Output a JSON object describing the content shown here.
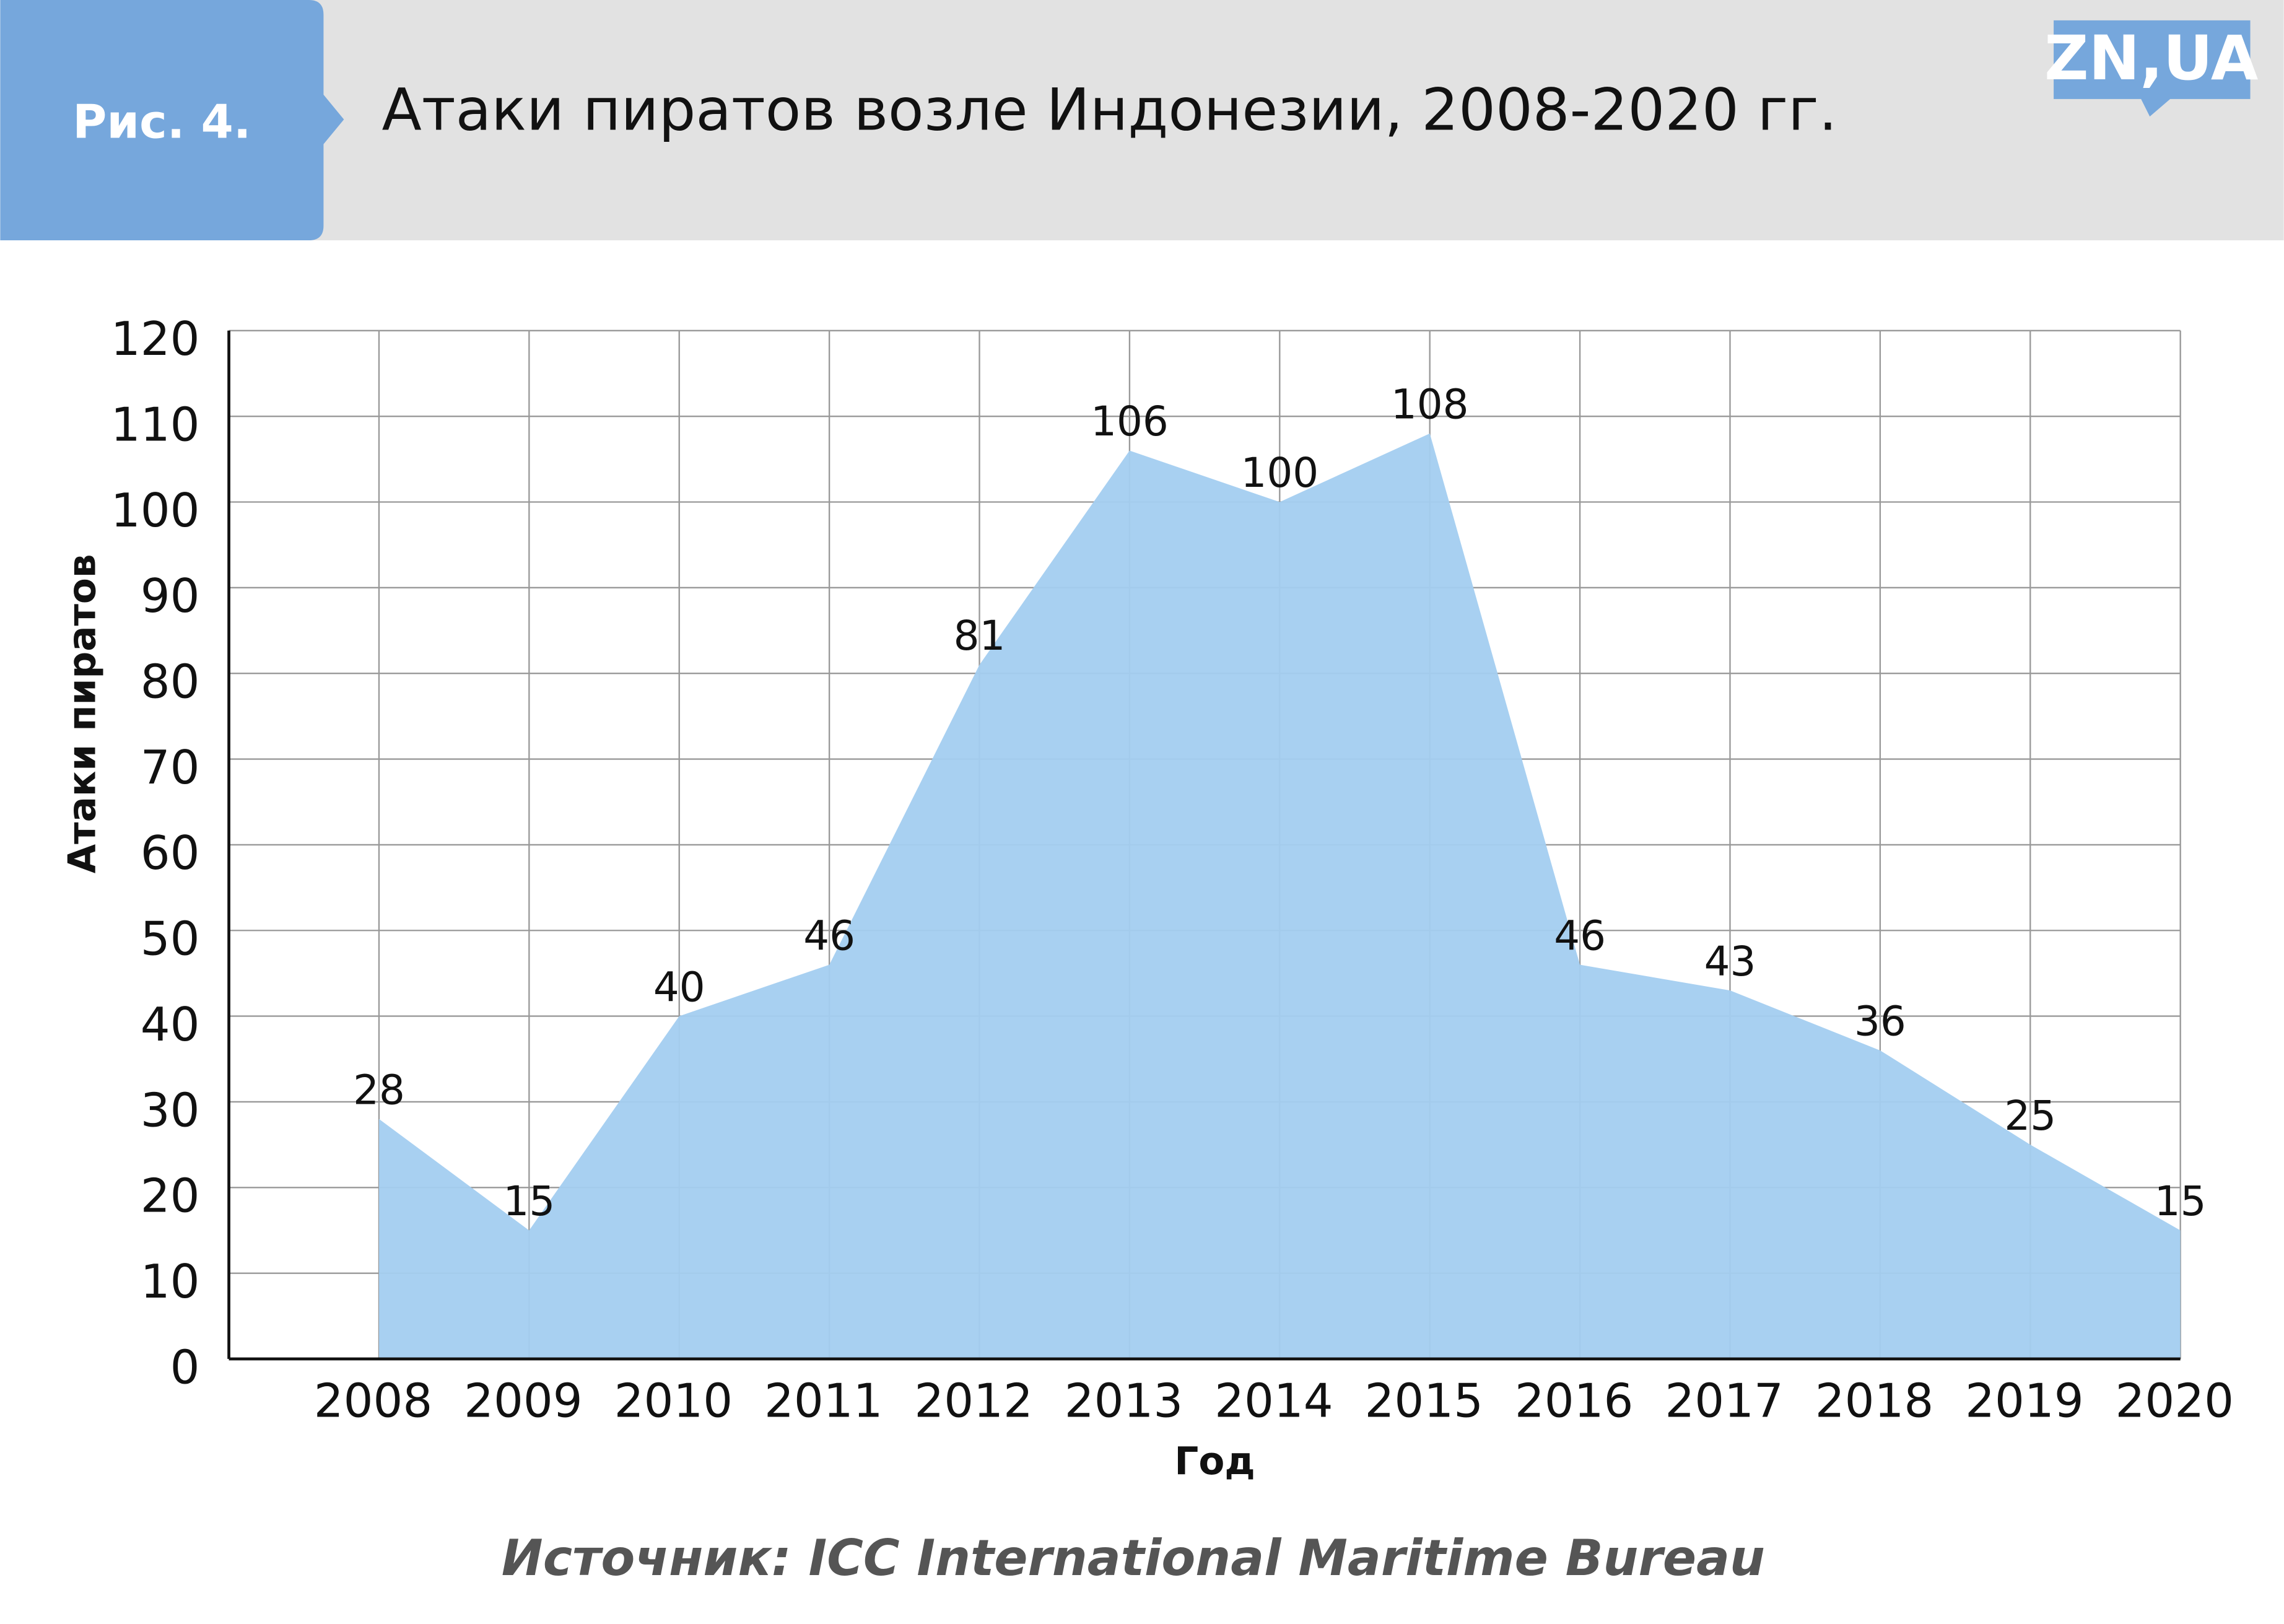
{
  "header": {
    "figure_label": "Рис. 4.",
    "logo": "ZN,UA"
  },
  "chart_data": {
    "type": "area",
    "title": "Атаки пиратов возле Индонезии, 2008-2020 гг.",
    "x_label": "Год",
    "y_label": "Атаки пиратов",
    "x": [
      2008,
      2009,
      2010,
      2011,
      2012,
      2013,
      2014,
      2015,
      2016,
      2017,
      2018,
      2019,
      2020
    ],
    "values": [
      28,
      15,
      40,
      46,
      81,
      106,
      100,
      108,
      46,
      43,
      36,
      25,
      15
    ],
    "color": "#a3cdf0",
    "xlim": [
      2007,
      2020
    ],
    "xticks": [
      2008,
      2009,
      2010,
      2011,
      2012,
      2013,
      2014,
      2015,
      2016,
      2017,
      2018,
      2019,
      2020
    ],
    "ylim": [
      0,
      120
    ],
    "yticks": [
      0,
      10,
      20,
      30,
      40,
      50,
      60,
      70,
      80,
      90,
      100,
      110,
      120
    ],
    "grid": true
  },
  "source": "Источник: ICC International Maritime Bureau"
}
